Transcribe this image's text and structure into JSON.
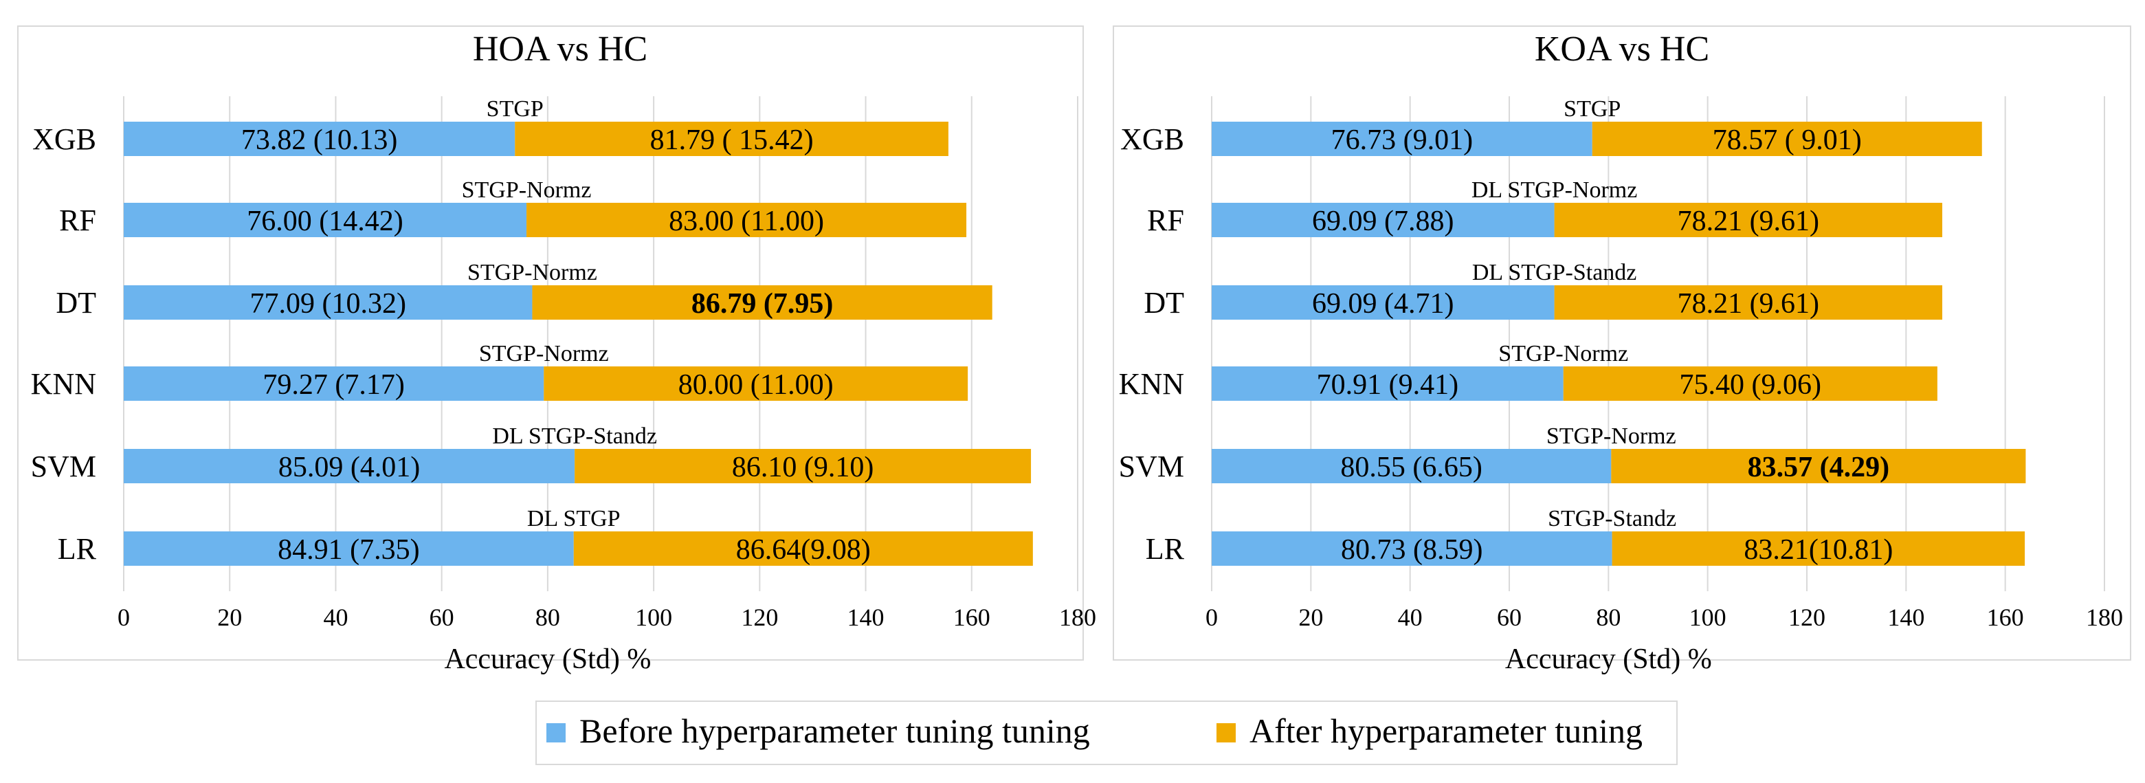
{
  "legend": {
    "before": "Before hyperparameter tuning tuning",
    "after": "After hyperparameter tuning"
  },
  "colors": {
    "before": "#6CB4EE",
    "after": "#F0AB00"
  },
  "chart_data": [
    {
      "type": "bar",
      "stacked": true,
      "orientation": "horizontal",
      "title": "HOA vs HC",
      "xlabel": "Accuracy (Std) %",
      "ylabel": "",
      "xlim": [
        0,
        180
      ],
      "ticks": [
        0,
        20,
        40,
        60,
        80,
        100,
        120,
        140,
        160,
        180
      ],
      "categories": [
        "XGB",
        "RF",
        "DT",
        "KNN",
        "SVM",
        "LR"
      ],
      "annotations": [
        "STGP",
        "STGP-Normz",
        "STGP-Normz",
        "STGP-Normz",
        "DL STGP-Standz",
        "DL STGP"
      ],
      "series": [
        {
          "name": "Before hyperparameter tuning tuning",
          "values": [
            73.82,
            76.0,
            77.09,
            79.27,
            85.09,
            84.91
          ],
          "labels": [
            "73.82 (10.13)",
            "76.00 (14.42)",
            "77.09 (10.32)",
            "79.27 (7.17)",
            "85.09 (4.01)",
            "84.91 (7.35)"
          ],
          "bold": [
            false,
            false,
            false,
            false,
            false,
            false
          ]
        },
        {
          "name": "After hyperparameter tuning",
          "values": [
            81.79,
            83.0,
            86.79,
            80.0,
            86.1,
            86.64
          ],
          "labels": [
            "81.79 ( 15.42)",
            "83.00 (11.00)",
            "86.79 (7.95)",
            "80.00 (11.00)",
            "86.10 (9.10)",
            "86.64(9.08)"
          ],
          "bold": [
            false,
            false,
            true,
            false,
            false,
            false
          ]
        }
      ]
    },
    {
      "type": "bar",
      "stacked": true,
      "orientation": "horizontal",
      "title": "KOA vs HC",
      "xlabel": "Accuracy (Std) %",
      "ylabel": "",
      "xlim": [
        0,
        180
      ],
      "ticks": [
        0,
        20,
        40,
        60,
        80,
        100,
        120,
        140,
        160,
        180
      ],
      "categories": [
        "XGB",
        "RF",
        "DT",
        "KNN",
        "SVM",
        "LR"
      ],
      "annotations": [
        "STGP",
        "DL STGP-Normz",
        "DL STGP-Standz",
        "STGP-Normz",
        "STGP-Normz",
        "STGP-Standz"
      ],
      "series": [
        {
          "name": "Before hyperparameter tuning tuning",
          "values": [
            76.73,
            69.09,
            69.09,
            70.91,
            80.55,
            80.73
          ],
          "labels": [
            "76.73 (9.01)",
            "69.09 (7.88)",
            "69.09 (4.71)",
            "70.91 (9.41)",
            "80.55 (6.65)",
            "80.73 (8.59)"
          ],
          "bold": [
            false,
            false,
            false,
            false,
            false,
            false
          ]
        },
        {
          "name": "After hyperparameter tuning",
          "values": [
            78.57,
            78.21,
            78.21,
            75.4,
            83.57,
            83.21
          ],
          "labels": [
            "78.57 ( 9.01)",
            "78.21 (9.61)",
            "78.21 (9.61)",
            "75.40 (9.06)",
            "83.57 (4.29)",
            "83.21(10.81)"
          ],
          "bold": [
            false,
            false,
            false,
            false,
            true,
            false
          ]
        }
      ]
    }
  ]
}
